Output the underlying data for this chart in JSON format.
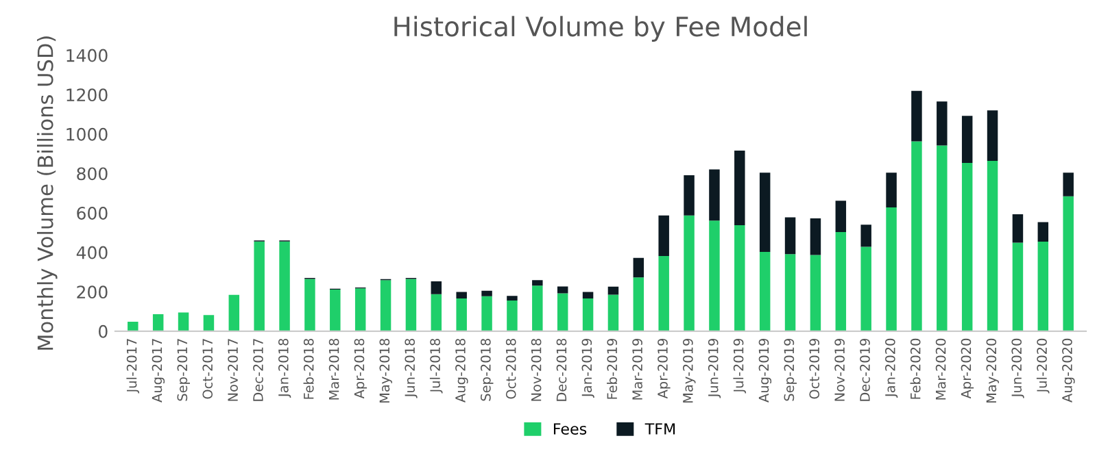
{
  "chart_data": {
    "type": "bar",
    "title": "Historical Volume by Fee Model",
    "ylabel": "Monthly Volume (Billions USD)",
    "categories": [
      "Jul-2017",
      "Aug-2017",
      "Sep-2017",
      "Oct-2017",
      "Nov-2017",
      "Dec-2017",
      "Jan-2018",
      "Feb-2018",
      "Mar-2018",
      "Apr-2018",
      "May-2018",
      "Jun-2018",
      "Jul-2018",
      "Aug-2018",
      "Sep-2018",
      "Oct-2018",
      "Nov-2018",
      "Dec-2018",
      "Jan-2019",
      "Feb-2019",
      "Mar-2019",
      "Apr-2019",
      "May-2019",
      "Jun-2019",
      "Jul-2019",
      "Aug-2019",
      "Sep-2019",
      "Oct-2019",
      "Nov-2019",
      "Dec-2019",
      "Jan-2020",
      "Feb-2020",
      "Mar-2020",
      "Apr-2020",
      "May-2020",
      "Jun-2020",
      "Jul-2020",
      "Aug-2020"
    ],
    "stacked": true,
    "series": [
      {
        "name": "Fees",
        "color": "#1fcf6a",
        "values": [
          48,
          86,
          95,
          82,
          184,
          455,
          455,
          265,
          211,
          217,
          259,
          265,
          188,
          166,
          177,
          156,
          231,
          192,
          166,
          185,
          273,
          381,
          587,
          561,
          538,
          402,
          391,
          387,
          503,
          428,
          628,
          963,
          942,
          854,
          864,
          449,
          454,
          684
        ]
      },
      {
        "name": "TFM",
        "color": "#0c1a22",
        "values": [
          0,
          0,
          0,
          0,
          0,
          5,
          5,
          5,
          5,
          5,
          5,
          5,
          65,
          33,
          28,
          23,
          28,
          35,
          33,
          41,
          99,
          206,
          204,
          260,
          378,
          402,
          187,
          185,
          159,
          112,
          176,
          256,
          223,
          238,
          256,
          144,
          99,
          120
        ]
      }
    ],
    "ylim": [
      0,
      1400
    ],
    "yticks": [
      0,
      200,
      400,
      600,
      800,
      1000,
      1200,
      1400
    ],
    "grid": false,
    "legend": "bottom"
  }
}
